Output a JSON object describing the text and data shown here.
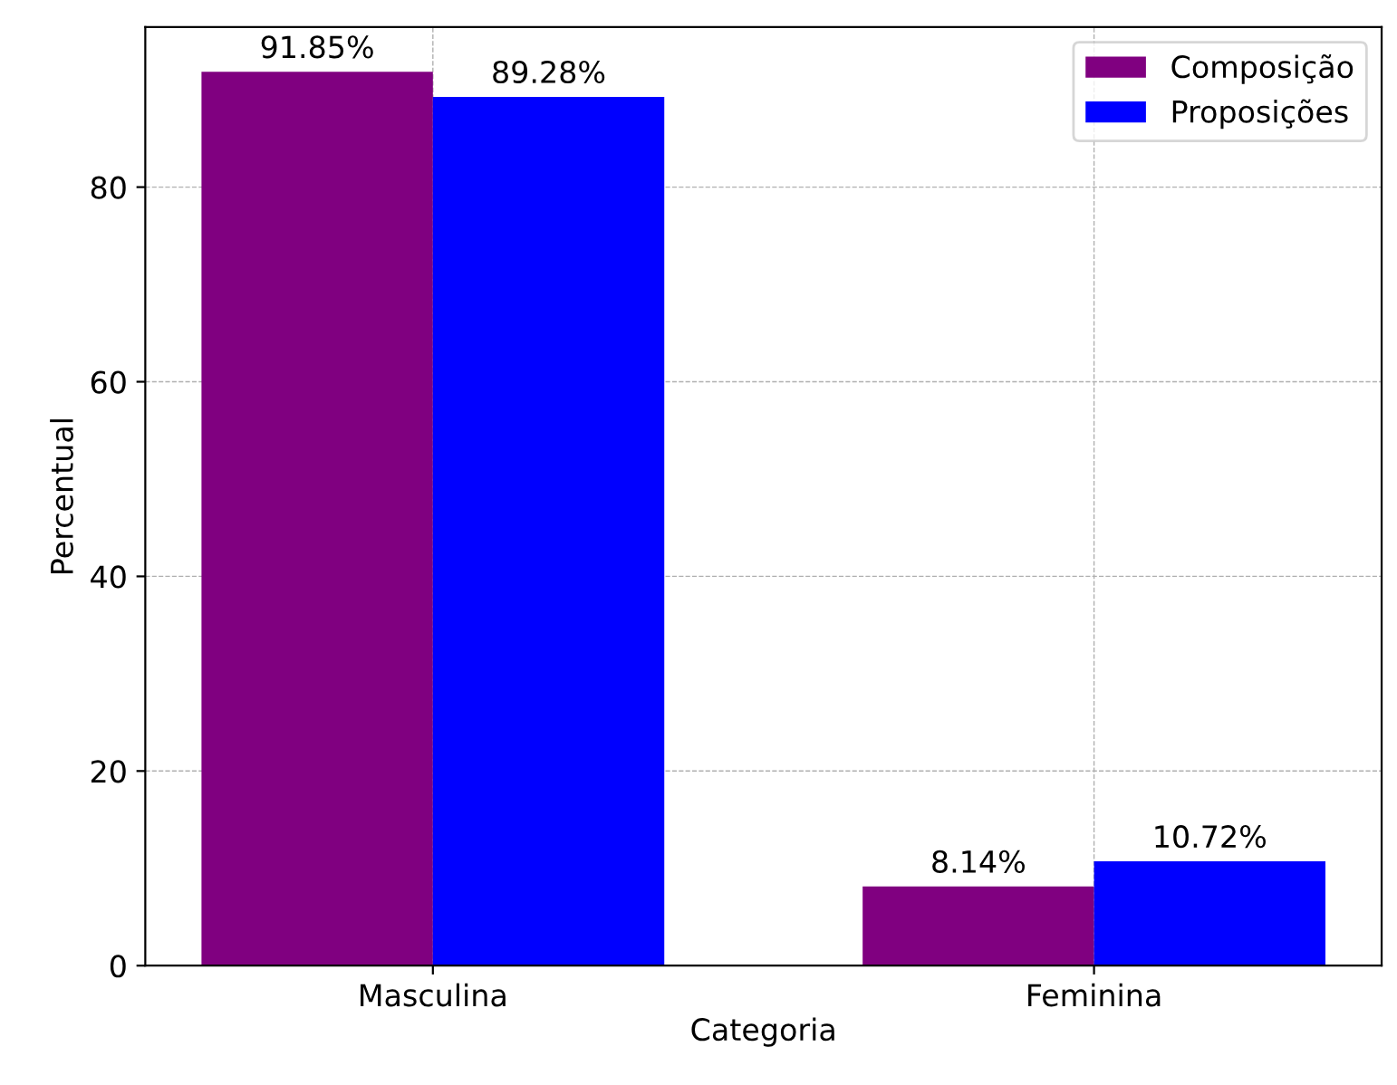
{
  "chart_data": {
    "type": "bar",
    "xlabel": "Categoria",
    "ylabel": "Percentual",
    "categories": [
      "Masculina",
      "Feminina"
    ],
    "series": [
      {
        "name": "Composição",
        "color": "#800080",
        "values": [
          91.85,
          8.14
        ],
        "value_labels": [
          "91.85%",
          "8.14%"
        ]
      },
      {
        "name": "Proposições",
        "color": "#0000ff",
        "values": [
          89.28,
          10.72
        ],
        "value_labels": [
          "89.28%",
          "10.72%"
        ]
      }
    ],
    "ylim": [
      0,
      96.44
    ],
    "yticks": [
      0,
      20,
      40,
      60,
      80
    ],
    "grid": true,
    "legend": "top right"
  }
}
